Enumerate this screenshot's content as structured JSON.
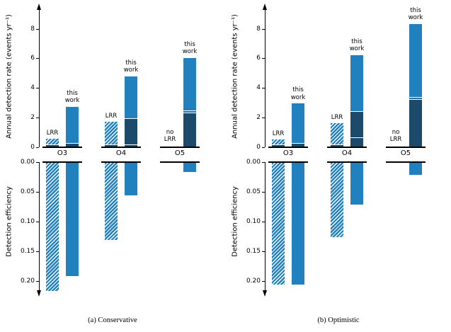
{
  "figure": {
    "colors": {
      "light": "#2181bf",
      "mid": "#2a6d9e",
      "dark": "#1b4a6b",
      "axis": "#000000"
    },
    "labels": {
      "lrr": "LRR",
      "this_work": "this\nwork",
      "no_lrr": "no\nLRR"
    }
  },
  "chart_data": [
    {
      "type": "bar",
      "caption": "(a) Conservative",
      "categories": [
        "O3",
        "O4",
        "O5"
      ],
      "subplots": [
        {
          "name": "annual-detection-rate",
          "ylabel": "Annual detection rate (events yr⁻¹)",
          "ylim": [
            0,
            9
          ],
          "ticks": [
            0,
            2,
            4,
            6,
            8
          ],
          "series": [
            {
              "name": "LRR",
              "style": "hatched",
              "segments": {
                "O3": [
                  [
                    0.12,
                    "dark",
                    0
                  ],
                  [
                    0.4,
                    "light",
                    1
                  ]
                ],
                "O4": [
                  [
                    0.15,
                    "dark",
                    0
                  ],
                  [
                    1.55,
                    "light",
                    1
                  ]
                ],
                "O5": null
              },
              "totals": {
                "O3": 0.52,
                "O4": 1.7,
                "O5": null
              }
            },
            {
              "name": "this work",
              "style": "solid",
              "segments": {
                "O3": [
                  [
                    0.22,
                    "dark",
                    0
                  ],
                  [
                    2.48,
                    "light",
                    0
                  ]
                ],
                "O4": [
                  [
                    0.15,
                    "dark",
                    0
                  ],
                  [
                    1.75,
                    "dark",
                    0
                  ],
                  [
                    2.85,
                    "light",
                    0
                  ]
                ],
                "O5": [
                  [
                    2.3,
                    "dark",
                    0
                  ],
                  [
                    0.12,
                    "mid",
                    0
                  ],
                  [
                    3.58,
                    "light",
                    0
                  ]
                ]
              },
              "totals": {
                "O3": 2.7,
                "O4": 4.75,
                "O5": 6.0
              }
            }
          ]
        },
        {
          "name": "detection-efficiency",
          "ylabel": "Detection efficiency",
          "ylim": [
            0,
            0.22
          ],
          "inverted": true,
          "ticks": [
            "0.00",
            "0.05",
            "0.10",
            "0.15",
            "0.20"
          ],
          "series": [
            {
              "name": "LRR",
              "style": "hatched",
              "values": [
                0.215,
                0.13,
                null
              ]
            },
            {
              "name": "this work",
              "style": "solid",
              "values": [
                0.19,
                0.055,
                0.015
              ]
            }
          ]
        }
      ]
    },
    {
      "type": "bar",
      "caption": "(b) Optimistic",
      "categories": [
        "O3",
        "O4",
        "O5"
      ],
      "subplots": [
        {
          "name": "annual-detection-rate",
          "ylabel": "Annual detection rate (events yr⁻¹)",
          "ylim": [
            0,
            9
          ],
          "ticks": [
            0,
            2,
            4,
            6,
            8
          ],
          "series": [
            {
              "name": "LRR",
              "style": "hatched",
              "segments": {
                "O3": [
                  [
                    0.12,
                    "dark",
                    0
                  ],
                  [
                    0.38,
                    "light",
                    1
                  ]
                ],
                "O4": [
                  [
                    0.15,
                    "dark",
                    0
                  ],
                  [
                    1.45,
                    "light",
                    1
                  ]
                ],
                "O5": null
              },
              "totals": {
                "O3": 0.5,
                "O4": 1.6,
                "O5": null
              }
            },
            {
              "name": "this work",
              "style": "solid",
              "segments": {
                "O3": [
                  [
                    0.25,
                    "dark",
                    0
                  ],
                  [
                    2.65,
                    "light",
                    0
                  ]
                ],
                "O4": [
                  [
                    0.6,
                    "dark",
                    0
                  ],
                  [
                    1.8,
                    "dark",
                    0
                  ],
                  [
                    3.8,
                    "light",
                    0
                  ]
                ],
                "O5": [
                  [
                    3.2,
                    "dark",
                    0
                  ],
                  [
                    0.15,
                    "mid",
                    0
                  ],
                  [
                    4.95,
                    "light",
                    0
                  ]
                ]
              },
              "totals": {
                "O3": 2.9,
                "O4": 6.2,
                "O5": 8.3
              }
            }
          ]
        },
        {
          "name": "detection-efficiency",
          "ylabel": "Detection efficiency",
          "ylim": [
            0,
            0.22
          ],
          "inverted": true,
          "ticks": [
            "0.00",
            "0.05",
            "0.10",
            "0.15",
            "0.20"
          ],
          "series": [
            {
              "name": "LRR",
              "style": "hatched",
              "values": [
                0.205,
                0.125,
                null
              ]
            },
            {
              "name": "this work",
              "style": "solid",
              "values": [
                0.205,
                0.07,
                0.02
              ]
            }
          ]
        }
      ]
    }
  ]
}
